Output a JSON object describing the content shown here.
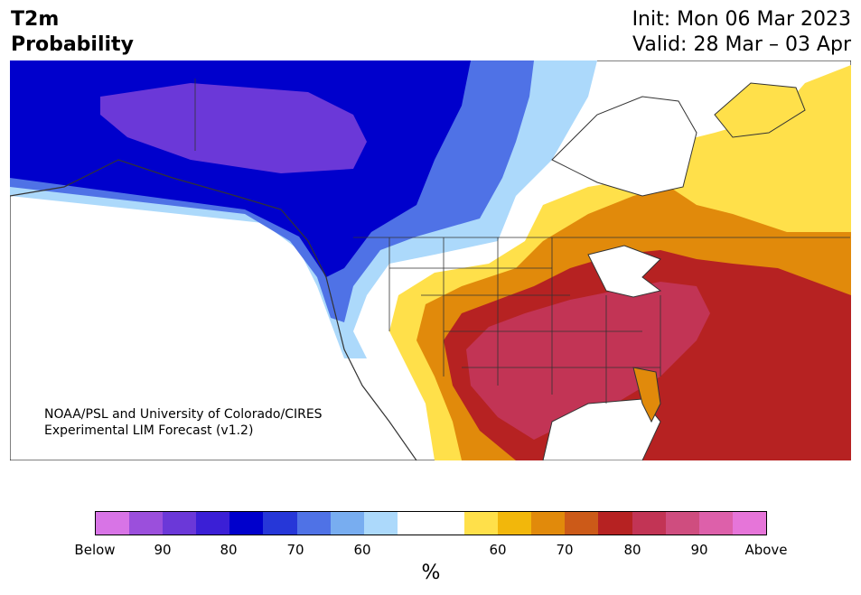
{
  "header": {
    "title_line1": "T2m",
    "title_line2": "Probability",
    "init": "Init: Mon 06 Mar 2023",
    "valid": "Valid: 28 Mar – 03 Apr"
  },
  "credit": {
    "line1": "NOAA/PSL and University of Colorado/CIRES",
    "line2": "Experimental LIM Forecast (v1.2)"
  },
  "colorbar": {
    "colors": [
      "#d874e6",
      "#9b4fdc",
      "#6b38d8",
      "#3b1fd6",
      "#0000cc",
      "#2637d8",
      "#4f72e6",
      "#78adf0",
      "#acd9fb",
      "#ffffff",
      "#ffffff",
      "#ffe04a",
      "#f2b70b",
      "#e18a0b",
      "#cc5a18",
      "#b62222",
      "#c23455",
      "#cf4d7f",
      "#dd60aa",
      "#e675d9"
    ],
    "tick_labels": [
      "Below",
      "90",
      "80",
      "70",
      "60",
      "60",
      "70",
      "80",
      "90",
      "Above"
    ],
    "unit_label": "%"
  },
  "map_colors": {
    "land": "#ffffff",
    "ocean": "#ffffff",
    "border": "#333333",
    "below_90": "#6b38d8",
    "below_80": "#0000cc",
    "below_70": "#4f72e6",
    "below_60": "#acd9fb",
    "above_60": "#ffe04a",
    "above_70": "#e18a0b",
    "above_80": "#b62222",
    "above_90": "#c23455"
  }
}
